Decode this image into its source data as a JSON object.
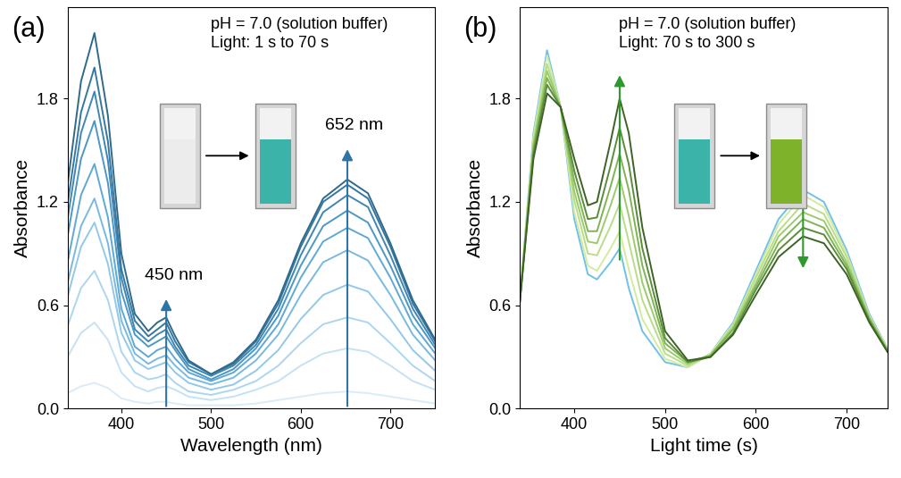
{
  "chart_data": [
    {
      "type": "line",
      "panel_label": "(a)",
      "annotations": [
        "pH = 7.0 (solution buffer)",
        "Light: 1 s to 70 s"
      ],
      "xlabel": "Wavelength (nm)",
      "ylabel": "Absorbance",
      "xlim": [
        340,
        750
      ],
      "ylim": [
        0,
        2.33
      ],
      "xticks": [
        400,
        500,
        600,
        700
      ],
      "yticks": [
        0.0,
        0.6,
        1.2,
        1.8
      ],
      "x": [
        340,
        355,
        370,
        385,
        400,
        415,
        430,
        440,
        450,
        460,
        475,
        500,
        525,
        550,
        575,
        600,
        625,
        652,
        675,
        700,
        725,
        750
      ],
      "series": [
        {
          "color": "#d9ecf7",
          "values": [
            0.09,
            0.13,
            0.15,
            0.12,
            0.06,
            0.04,
            0.03,
            0.04,
            0.04,
            0.03,
            0.02,
            0.02,
            0.02,
            0.03,
            0.05,
            0.07,
            0.09,
            0.1,
            0.09,
            0.07,
            0.05,
            0.03
          ]
        },
        {
          "color": "#c4e2f3",
          "values": [
            0.3,
            0.44,
            0.5,
            0.4,
            0.21,
            0.13,
            0.1,
            0.12,
            0.13,
            0.11,
            0.07,
            0.05,
            0.07,
            0.11,
            0.16,
            0.25,
            0.32,
            0.35,
            0.33,
            0.25,
            0.16,
            0.11
          ]
        },
        {
          "color": "#acd6ef",
          "values": [
            0.48,
            0.7,
            0.8,
            0.63,
            0.33,
            0.21,
            0.17,
            0.18,
            0.2,
            0.15,
            0.1,
            0.08,
            0.11,
            0.16,
            0.25,
            0.38,
            0.49,
            0.53,
            0.5,
            0.38,
            0.25,
            0.16
          ]
        },
        {
          "color": "#92c8e8",
          "values": [
            0.65,
            0.94,
            1.08,
            0.84,
            0.44,
            0.28,
            0.23,
            0.25,
            0.27,
            0.21,
            0.15,
            0.11,
            0.14,
            0.22,
            0.34,
            0.52,
            0.66,
            0.72,
            0.68,
            0.52,
            0.34,
            0.22
          ]
        },
        {
          "color": "#78b9e0",
          "values": [
            0.73,
            1.06,
            1.22,
            0.96,
            0.51,
            0.32,
            0.26,
            0.29,
            0.31,
            0.25,
            0.18,
            0.14,
            0.18,
            0.28,
            0.43,
            0.66,
            0.85,
            0.92,
            0.86,
            0.66,
            0.43,
            0.28
          ]
        },
        {
          "color": "#5fa8d5",
          "values": [
            0.85,
            1.24,
            1.42,
            1.11,
            0.58,
            0.36,
            0.3,
            0.34,
            0.36,
            0.29,
            0.21,
            0.16,
            0.21,
            0.32,
            0.49,
            0.76,
            0.97,
            1.05,
            0.99,
            0.76,
            0.49,
            0.32
          ]
        },
        {
          "color": "#4b97c6",
          "values": [
            1.0,
            1.45,
            1.67,
            1.31,
            0.68,
            0.43,
            0.36,
            0.39,
            0.42,
            0.34,
            0.23,
            0.17,
            0.23,
            0.35,
            0.54,
            0.83,
            1.06,
            1.15,
            1.08,
            0.83,
            0.54,
            0.35
          ]
        },
        {
          "color": "#3f86b3",
          "values": [
            1.1,
            1.6,
            1.84,
            1.44,
            0.76,
            0.46,
            0.39,
            0.43,
            0.46,
            0.36,
            0.25,
            0.19,
            0.25,
            0.37,
            0.58,
            0.89,
            1.14,
            1.24,
            1.17,
            0.89,
            0.58,
            0.37
          ]
        },
        {
          "color": "#36779f",
          "values": [
            1.19,
            1.72,
            1.98,
            1.55,
            0.81,
            0.51,
            0.42,
            0.46,
            0.5,
            0.39,
            0.27,
            0.2,
            0.26,
            0.39,
            0.61,
            0.94,
            1.2,
            1.3,
            1.22,
            0.94,
            0.61,
            0.39
          ]
        },
        {
          "color": "#2e6a8c",
          "values": [
            1.3,
            1.9,
            2.18,
            1.7,
            0.9,
            0.55,
            0.45,
            0.5,
            0.53,
            0.42,
            0.28,
            0.2,
            0.27,
            0.4,
            0.63,
            0.96,
            1.22,
            1.33,
            1.25,
            0.96,
            0.63,
            0.4
          ]
        }
      ],
      "arrows": [
        {
          "x": 450,
          "y": [
            0,
            0.65
          ],
          "label": "450 nm",
          "color": "#2e75a6"
        },
        {
          "x": 652,
          "y": [
            0,
            1.52
          ],
          "label": "652 nm",
          "color": "#2e75a6"
        }
      ]
    },
    {
      "type": "line",
      "panel_label": "(b)",
      "annotations": [
        "pH = 7.0 (solution buffer)",
        "Light: 70 s to 300 s"
      ],
      "xlabel": "Light time (s)",
      "ylabel": "Absorbance",
      "xlim": [
        340,
        745
      ],
      "ylim": [
        0,
        2.33
      ],
      "xticks": [
        400,
        500,
        600,
        700
      ],
      "yticks": [
        0.0,
        0.6,
        1.2,
        1.8
      ],
      "x": [
        340,
        355,
        370,
        385,
        400,
        415,
        425,
        440,
        450,
        460,
        475,
        500,
        525,
        550,
        575,
        600,
        625,
        652,
        675,
        700,
        725,
        745
      ],
      "series": [
        {
          "color": "#6ec1ea",
          "values": [
            0.62,
            1.6,
            2.08,
            1.75,
            1.1,
            0.78,
            0.75,
            0.85,
            0.93,
            0.7,
            0.45,
            0.27,
            0.24,
            0.32,
            0.5,
            0.8,
            1.1,
            1.27,
            1.2,
            0.92,
            0.55,
            0.35
          ]
        },
        {
          "color": "#d4eaa0",
          "values": [
            0.62,
            1.58,
            2.05,
            1.75,
            1.14,
            0.83,
            0.8,
            0.93,
            1.03,
            0.81,
            0.52,
            0.29,
            0.24,
            0.32,
            0.49,
            0.78,
            1.07,
            1.24,
            1.17,
            0.9,
            0.54,
            0.35
          ]
        },
        {
          "color": "#b9dd8a",
          "values": [
            0.62,
            1.55,
            2.0,
            1.75,
            1.21,
            0.9,
            0.89,
            1.06,
            1.19,
            0.97,
            0.63,
            0.32,
            0.25,
            0.31,
            0.48,
            0.76,
            1.03,
            1.19,
            1.13,
            0.88,
            0.53,
            0.34
          ]
        },
        {
          "color": "#9ccb6e",
          "values": [
            0.62,
            1.53,
            1.96,
            1.75,
            1.26,
            0.97,
            0.96,
            1.18,
            1.34,
            1.12,
            0.73,
            0.35,
            0.26,
            0.31,
            0.47,
            0.73,
            1.0,
            1.14,
            1.09,
            0.85,
            0.53,
            0.34
          ]
        },
        {
          "color": "#7fb356",
          "values": [
            0.62,
            1.51,
            1.92,
            1.75,
            1.32,
            1.03,
            1.03,
            1.29,
            1.48,
            1.27,
            0.83,
            0.38,
            0.27,
            0.31,
            0.46,
            0.71,
            0.96,
            1.1,
            1.05,
            0.83,
            0.52,
            0.34
          ]
        },
        {
          "color": "#5a8c3a",
          "values": [
            0.62,
            1.48,
            1.88,
            1.75,
            1.38,
            1.1,
            1.11,
            1.41,
            1.63,
            1.42,
            0.93,
            0.41,
            0.27,
            0.3,
            0.44,
            0.69,
            0.92,
            1.05,
            1.01,
            0.81,
            0.51,
            0.33
          ]
        },
        {
          "color": "#3d6324",
          "values": [
            0.62,
            1.45,
            1.83,
            1.75,
            1.45,
            1.18,
            1.2,
            1.55,
            1.8,
            1.6,
            1.05,
            0.45,
            0.28,
            0.3,
            0.43,
            0.66,
            0.88,
            1.0,
            0.96,
            0.78,
            0.5,
            0.33
          ]
        }
      ],
      "arrows": [
        {
          "x": 450,
          "y": [
            0.85,
            1.95
          ],
          "color": "#2e9a2e"
        },
        {
          "x": 652,
          "y": [
            1.3,
            0.8
          ],
          "color": "#2e9a2e"
        }
      ]
    }
  ]
}
